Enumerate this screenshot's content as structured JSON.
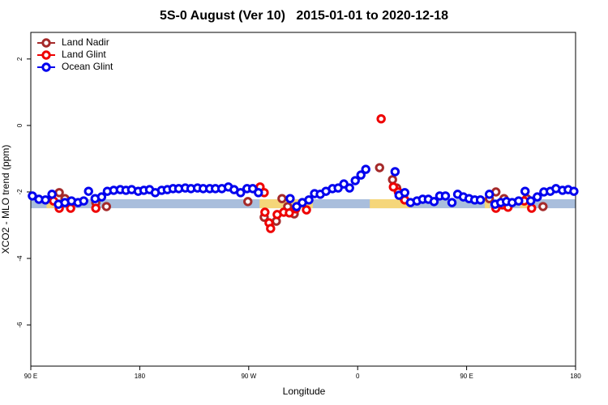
{
  "chart_data": {
    "type": "scatter",
    "title": "5S-0 August (Ver 10)   2015-01-01 to 2020-12-18",
    "x_label": "Longitude",
    "y_label": "XCO2 - MLO trend (ppm)",
    "xlim": [
      90,
      540
    ],
    "ylim": [
      -7.24,
      2.8
    ],
    "xticks": [
      {
        "value": 90,
        "label": "90 E"
      },
      180,
      {
        "value": 270,
        "label": "90 W"
      },
      {
        "value": 360,
        "label": "0"
      },
      {
        "value": 450,
        "label": "90 E"
      },
      {
        "value": 540,
        "label": "180"
      }
    ],
    "yticks": [
      2,
      0,
      -2,
      -4,
      -6
    ],
    "legend": "top-left",
    "band": {
      "range": [
        -2.22,
        -2.49
      ],
      "color": "#a9bedc",
      "segments": [
        {
          "xlim": [
            103,
            109
          ],
          "color": "#f5d67a"
        },
        {
          "xlim": [
            279,
            323
          ],
          "color": "#f5d67a"
        },
        {
          "xlim": [
            370,
            404
          ],
          "color": "#f5d67a"
        },
        {
          "xlim": [
            465,
            469
          ],
          "color": "#f5d67a"
        },
        {
          "xlim": [
            494,
            501
          ],
          "color": "#f5d67a"
        }
      ]
    },
    "series": [
      {
        "name": "Land Nadir",
        "color": "#a52a2a",
        "x": [
          113.5,
          118.2,
          143.7,
          152.5,
          269.3,
          282.8,
          292.8,
          297.5,
          302.2,
          307.6,
          378.1,
          388.8,
          392.2,
          398.3,
          468.8,
          474.2,
          480.9,
          499.7,
          513.1
        ],
        "values": [
          -2.02,
          -2.2,
          -2.32,
          -2.44,
          -2.29,
          -2.76,
          -2.88,
          -2.2,
          -2.44,
          -2.66,
          -1.27,
          -1.63,
          -1.88,
          -2.2,
          -2.2,
          -2.0,
          -2.2,
          -2.2,
          -2.44
        ]
      },
      {
        "name": "Land Glint",
        "color": "#ee0000",
        "x": [
          108.8,
          113.5,
          122.9,
          143.7,
          279.4,
          282.8,
          283.4,
          286.8,
          288.1,
          293.5,
          298.9,
          303.6,
          308.9,
          317.7,
          379.4,
          389.5,
          393.6,
          398.9,
          474.2,
          479.6,
          484.2,
          497.6,
          503.7
        ],
        "values": [
          -2.27,
          -2.49,
          -2.49,
          -2.49,
          -1.85,
          -2.02,
          -2.61,
          -2.93,
          -3.1,
          -2.68,
          -2.61,
          -2.63,
          -2.51,
          -2.54,
          0.2,
          -1.85,
          -2.0,
          -2.24,
          -2.49,
          -2.39,
          -2.46,
          -2.27,
          -2.49
        ]
      },
      {
        "name": "Ocean Glint",
        "color": "#0000ee",
        "x": [
          91.3,
          96.7,
          102.1,
          107.5,
          112.8,
          118.2,
          123.6,
          129,
          133.7,
          137.7,
          143.1,
          148.5,
          153.2,
          158.5,
          163.9,
          168.6,
          173.3,
          178.7,
          183.4,
          188.1,
          192.8,
          198.1,
          202.8,
          207.5,
          212.2,
          217.6,
          222.3,
          227.7,
          232.4,
          237.8,
          242.5,
          247.8,
          253.2,
          257.9,
          263.3,
          268.6,
          273.3,
          278,
          304.2,
          309.6,
          314.3,
          319.7,
          324.4,
          329.1,
          333.8,
          339.2,
          343.9,
          348.6,
          353.3,
          358,
          362.7,
          366.7,
          390.9,
          394.2,
          398.9,
          403.6,
          409,
          413.7,
          418.4,
          423.1,
          427.8,
          432.5,
          437.9,
          442.6,
          447.3,
          452,
          456.7,
          461.4,
          468.8,
          473.5,
          478.2,
          482.9,
          487.6,
          493,
          498.3,
          503,
          508.4,
          513.8,
          519.1,
          523.8,
          529.2,
          533.9,
          538.6
        ],
        "values": [
          -2.12,
          -2.22,
          -2.24,
          -2.07,
          -2.37,
          -2.32,
          -2.27,
          -2.32,
          -2.27,
          -1.98,
          -2.2,
          -2.15,
          -1.98,
          -1.95,
          -1.93,
          -1.95,
          -1.93,
          -1.98,
          -1.95,
          -1.93,
          -2.02,
          -1.95,
          -1.93,
          -1.9,
          -1.9,
          -1.88,
          -1.9,
          -1.88,
          -1.9,
          -1.9,
          -1.9,
          -1.9,
          -1.85,
          -1.93,
          -2.02,
          -1.9,
          -1.9,
          -2.02,
          -2.2,
          -2.44,
          -2.32,
          -2.24,
          -2.05,
          -2.07,
          -1.98,
          -1.9,
          -1.88,
          -1.76,
          -1.88,
          -1.66,
          -1.49,
          -1.32,
          -1.39,
          -2.1,
          -2.02,
          -2.32,
          -2.27,
          -2.22,
          -2.22,
          -2.29,
          -2.12,
          -2.12,
          -2.32,
          -2.07,
          -2.15,
          -2.2,
          -2.24,
          -2.24,
          -2.07,
          -2.37,
          -2.32,
          -2.29,
          -2.32,
          -2.27,
          -1.98,
          -2.27,
          -2.15,
          -2.0,
          -1.98,
          -1.9,
          -1.95,
          -1.93,
          -1.98
        ]
      }
    ]
  }
}
